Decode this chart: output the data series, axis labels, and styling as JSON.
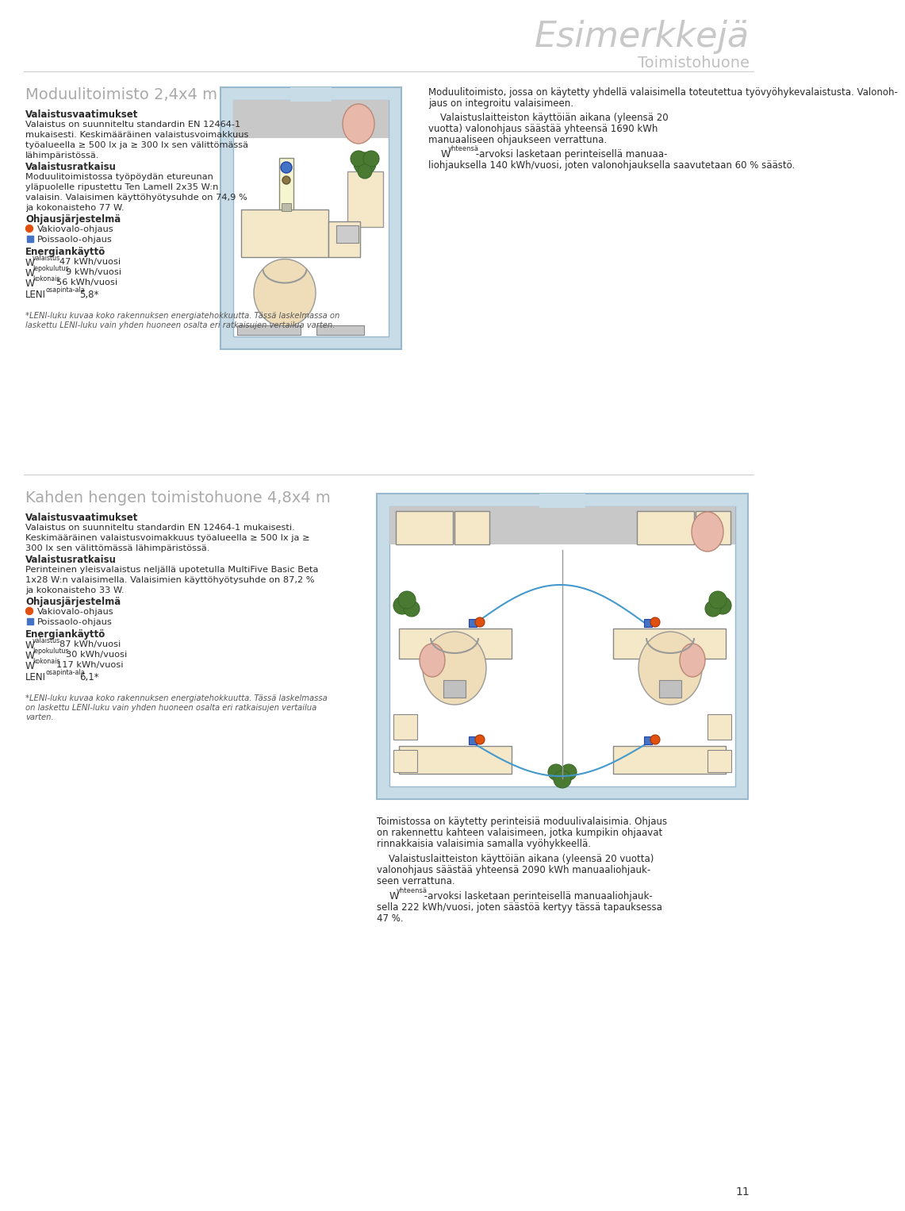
{
  "title_large": "Esimerkkejä",
  "title_sub": "Toimistohuone",
  "page_number": "11",
  "bg_color": "#ffffff",
  "s1_title": "Moduulitoimisto 2,4x4 m",
  "s1_bold1": "Valaistusvaatimukset",
  "s1_text1a": "Valaistus on suunniteltu standardin EN 12464-1",
  "s1_text1b": "mukaisesti. Keskimääräinen valaistusvoimakkuus",
  "s1_text1c": "työalueella ≥ 500 lx ja ≥ 300 lx sen välittömässä",
  "s1_text1d": "lähimpäristössä.",
  "s1_bold2": "Valaistusratkaisu",
  "s1_text2a": "Moduulitoimistossa työpöydän etureunan",
  "s1_text2b": "yläpuolelle ripustettu Ten Lamell 2x35 W:n",
  "s1_text2c": "valaisin. Valaisimen käyttöhyötysuhde on 74,9 %",
  "s1_text2d": "ja kokonaisteho 77 W.",
  "s1_bold3": "Ohjausjärjestelmä",
  "s1_bullet1": "Vakiovalo-ohjaus",
  "s1_bullet1_color": "#e05010",
  "s1_bullet2": "Poissaolo-ohjaus",
  "s1_bullet2_color": "#4472c4",
  "s1_bold4": "Energiankäyttö",
  "s1_w1_sub": "valaistus",
  "s1_w1_val": "47 kWh/vuosi",
  "s1_w2_sub": "lepokulutus",
  "s1_w2_val": "9 kWh/vuosi",
  "s1_w3_sub": "kokonais",
  "s1_w3_val": "56 kWh/vuosi",
  "s1_leni_sub": "osapinta-ala",
  "s1_leni_val": "5,8*",
  "s1_right1": "Moduulitoimisto, jossa on käytetty yhdellä valaisimella toteutettua työvyöhykevalaistusta. Valonoh-",
  "s1_right2": "jaus on integroitu valaisimeen.",
  "s1_right3": "    Valaistuslaitteiston käyttöiän aikana (yleensä 20",
  "s1_right4": "vuotta) valonohjaus säästää yhteensä 1690 kWh",
  "s1_right5": "manuaaliseen ohjaukseen verrattuna.",
  "s1_right6": "    W",
  "s1_right6sub": "yhteensä",
  "s1_right6c": " -arvoksi lasketaan perinteisellä manuaa-",
  "s1_right7": "liohjauksella 140 kWh/vuosi, joten valonohjauksella saavutetaan 60 % säästö.",
  "footnote1a": "*LENI-luku kuvaa koko rakennuksen energiatehokkuutta. Tässä laskelmassa on",
  "footnote1b": "laskettu LENI-luku vain yhden huoneen osalta eri ratkaisujen vertailua varten.",
  "s2_title": "Kahden hengen toimistohuone 4,8x4 m",
  "s2_bold1": "Valaistusvaatimukset",
  "s2_text1a": "Valaistus on suunniteltu standardin EN 12464-1 mukaisesti.",
  "s2_text1b": "Keskimääräinen valaistusvoimakkuus työalueella ≥ 500 lx ja ≥",
  "s2_text1c": "300 lx sen välittömässä lähimpäristössä.",
  "s2_bold2": "Valaistusratkaisu",
  "s2_text2a": "Perinteinen yleisvalaistus neljällä upotetulla MultiFive Basic Beta",
  "s2_text2b": "1x28 W:n valaisimella. Valaisimien käyttöhyötysuhde on 87,2 %",
  "s2_text2c": "ja kokonaisteho 33 W.",
  "s2_bold3": "Ohjausjärjestelmä",
  "s2_bullet1": "Vakiovalo-ohjaus",
  "s2_bullet1_color": "#e05010",
  "s2_bullet2": "Poissaolo-ohjaus",
  "s2_bullet2_color": "#4472c4",
  "s2_bold4": "Energiankäyttö",
  "s2_w1_sub": "valaistus",
  "s2_w1_val": "87 kWh/vuosi",
  "s2_w2_sub": "lepokulutus",
  "s2_w2_val": "30 kWh/vuosi",
  "s2_w3_sub": "kokonais",
  "s2_w3_val": "117 kWh/vuosi",
  "s2_leni_sub": "osapinta-ala",
  "s2_leni_val": "6,1*",
  "s2_right1": "Toimistossa on käytetty perinteisiä moduulivalaisimia. Ohjaus",
  "s2_right2": "on rakennettu kahteen valaisimeen, jotka kumpikin ohjaavat",
  "s2_right3": "rinnakkaisia valaisimia samalla vyöhykkeellä.",
  "s2_right4": "    Valaistuslaitteiston käyttöiän aikana (yleensä 20 vuotta)",
  "s2_right5": "valonohjaus säästää yhteensä 2090 kWh manuaaliohjauk-",
  "s2_right6": "seen verrattuna.",
  "s2_right7": "    W",
  "s2_right7sub": "yhteensä",
  "s2_right7c": " -arvoksi lasketaan perinteisellä manuaaliohjauk-",
  "s2_right8": "sella 222 kWh/vuosi, joten säästöä kertyyy tässä tapauksessa",
  "s2_right9": "47 %.",
  "footnote2a": "*LENI-luku kuvaa koko rakennuksen energiatehokkuutta. Tässä laskelmassa",
  "footnote2b": "on laskettu LENI-luku vain yhden huoneen osalta eri ratkaisujen vertailua",
  "footnote2c": "varten.",
  "room1_outer": "#c8dce8",
  "room1_inner": "#ffffff",
  "room1_grey": "#c8c8c8",
  "desk_fill": "#f5e8c8",
  "chair_fill": "#eeddb8",
  "plant_dark": "#3a6a28",
  "plant_mid": "#4a7a32",
  "plant_light": "#5a9040",
  "lamp_body": "#f5f5d0",
  "lamp_sensor_blue": "#4472c4",
  "lamp_sensor_orange": "#e05010",
  "person_fill": "#e8b8aa",
  "sofa_fill": "#f0ddc0",
  "cabinet_fill": "#f5e8c8",
  "blue_wire": "#4499cc"
}
